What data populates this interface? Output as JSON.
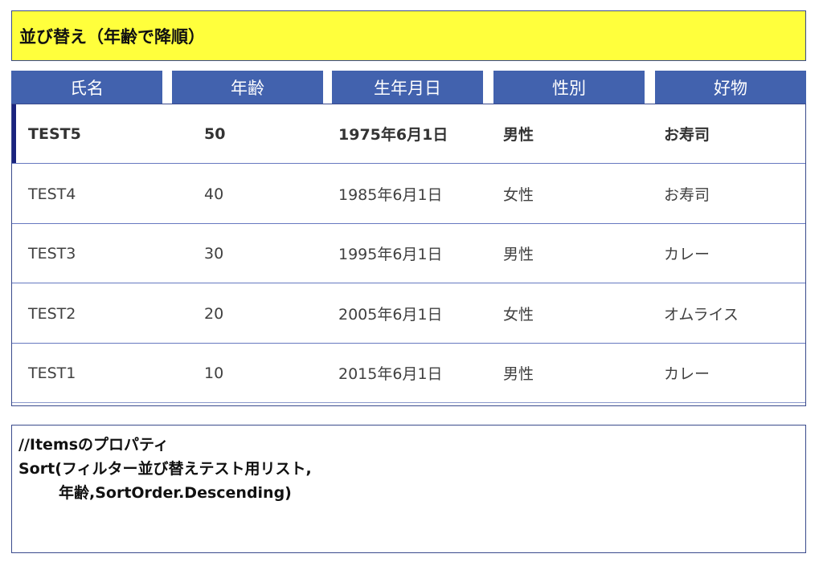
{
  "title": "並び替え（年齢で降順）",
  "headers": [
    "氏名",
    "年齢",
    "生年月日",
    "性別",
    "好物"
  ],
  "rows": [
    {
      "name": "TEST5",
      "age": "50",
      "birthday": "1975年6月1日",
      "gender": "男性",
      "favorite": "お寿司"
    },
    {
      "name": "TEST4",
      "age": "40",
      "birthday": "1985年6月1日",
      "gender": "女性",
      "favorite": "お寿司"
    },
    {
      "name": "TEST3",
      "age": "30",
      "birthday": "1995年6月1日",
      "gender": "男性",
      "favorite": "カレー"
    },
    {
      "name": "TEST2",
      "age": "20",
      "birthday": "2005年6月1日",
      "gender": "女性",
      "favorite": "オムライス"
    },
    {
      "name": "TEST1",
      "age": "10",
      "birthday": "2015年6月1日",
      "gender": "男性",
      "favorite": "カレー"
    }
  ],
  "selected_row": 0,
  "code": {
    "line1": "//Itemsのプロパティ",
    "line2": "Sort(フィルター並び替えテスト用リスト,",
    "line3": "年齢,SortOrder.Descending)"
  },
  "colors": {
    "title_bg": "#ffff3c",
    "header_bg": "#4262ae",
    "border": "#3a4a8c",
    "selection_bar": "#1a237e"
  }
}
